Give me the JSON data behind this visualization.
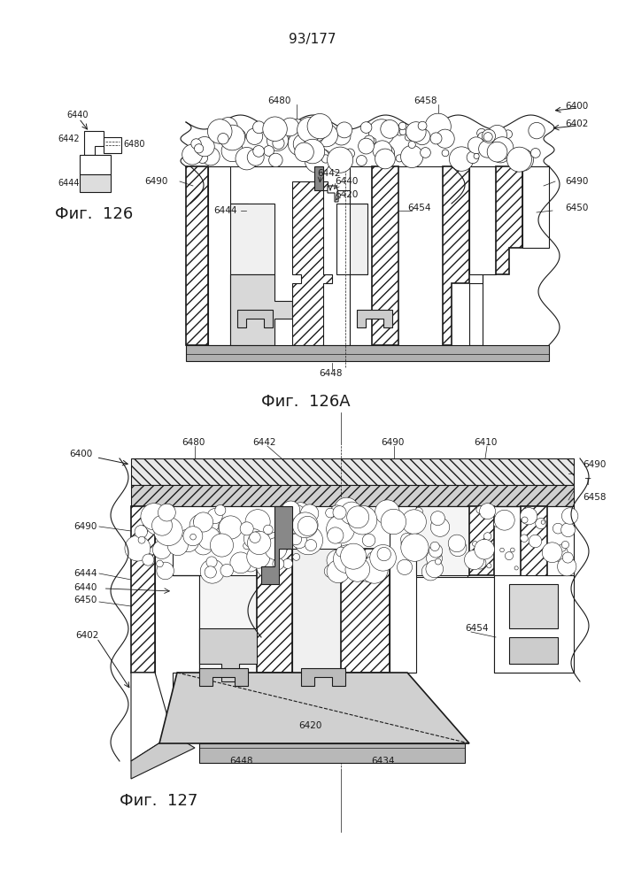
{
  "page_number": "93/177",
  "fig126_label": "Фиг.  126",
  "fig126A_label": "Фиг.  126А",
  "fig127_label": "Фиг.  127",
  "background_color": "#ffffff",
  "line_color": "#1a1a1a",
  "gray_light": "#c8c8c8",
  "gray_mid": "#a0a0a0",
  "gray_hatch": "#888888"
}
